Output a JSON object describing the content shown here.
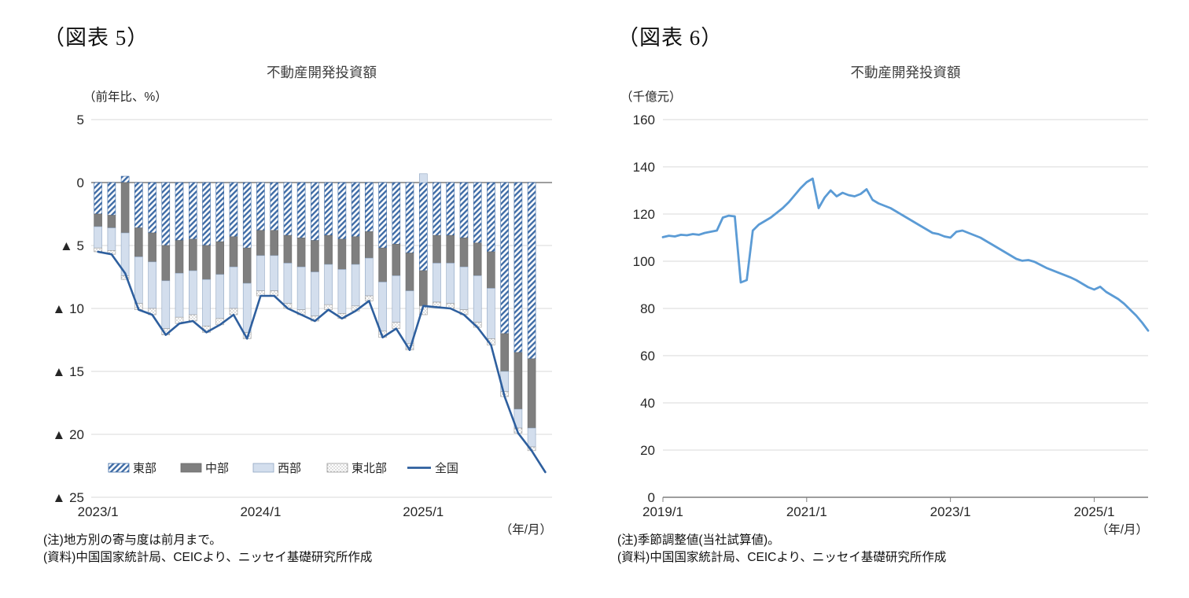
{
  "fig5": {
    "label": "（図表 5）",
    "note": "(注)地方別の寄与度は前月まで。",
    "source": "(資料)中国国家統計局、CEICより、ニッセイ基礎研究所作成"
  },
  "fig6": {
    "label": "（図表 6）",
    "note": "(注)季節調整値(当社試算値)。",
    "source": "(資料)中国国家統計局、CEICより、ニッセイ基礎研究所作成"
  },
  "chart_data": [
    {
      "type": "bar",
      "subtype": "stacked-bar-with-line",
      "title": "不動産開発投資額",
      "y_unit_label": "（前年比、%）",
      "x_unit_label": "（年/月）",
      "ylim": [
        -25,
        5
      ],
      "yticks": [
        5,
        0,
        -5,
        -10,
        -15,
        -20,
        -25
      ],
      "ytick_labels": [
        "5",
        "0",
        "▲ 5",
        "▲ 10",
        "▲ 15",
        "▲ 20",
        "▲ 25"
      ],
      "xtick_labels": [
        "2023/1",
        "2024/1",
        "2025/1"
      ],
      "xtick_positions": [
        0,
        12,
        24
      ],
      "grid": true,
      "legend_position": "bottom-inside",
      "x_months": [
        "2023/1",
        "2023/2",
        "2023/3",
        "2023/4",
        "2023/5",
        "2023/6",
        "2023/7",
        "2023/8",
        "2023/9",
        "2023/10",
        "2023/11",
        "2023/12",
        "2024/1",
        "2024/2",
        "2024/3",
        "2024/4",
        "2024/5",
        "2024/6",
        "2024/7",
        "2024/8",
        "2024/9",
        "2024/10",
        "2024/11",
        "2024/12",
        "2025/1",
        "2025/2",
        "2025/3",
        "2025/4",
        "2025/5",
        "2025/6",
        "2025/7",
        "2025/8",
        "2025/9",
        "2025/10"
      ],
      "bar_series": [
        {
          "name": "東部",
          "style": "hatch",
          "color": "#3f6ca6",
          "border": "#3f6ca6",
          "values": [
            -2.5,
            -2.6,
            0.5,
            -3.6,
            -4.0,
            -5.0,
            -4.6,
            -4.5,
            -5.0,
            -4.7,
            -4.3,
            -5.2,
            -3.8,
            -3.8,
            -4.2,
            -4.4,
            -4.6,
            -4.2,
            -4.5,
            -4.3,
            -3.9,
            -5.2,
            -4.9,
            -5.6,
            -7.0,
            -4.2,
            -4.2,
            -4.4,
            -4.8,
            -5.5,
            -12.0,
            -13.5,
            -14.0,
            null
          ]
        },
        {
          "name": "中部",
          "style": "solid",
          "color": "#7f7f7f",
          "border": "#6b6b6b",
          "values": [
            -1.0,
            -1.0,
            -4.0,
            -2.3,
            -2.3,
            -2.8,
            -2.6,
            -2.5,
            -2.7,
            -2.6,
            -2.4,
            -2.8,
            -2.0,
            -2.0,
            -2.2,
            -2.3,
            -2.5,
            -2.3,
            -2.4,
            -2.2,
            -2.1,
            -2.7,
            -2.5,
            -3.0,
            -2.8,
            -2.2,
            -2.2,
            -2.3,
            -2.6,
            -2.9,
            -3.0,
            -4.5,
            -5.5,
            null
          ]
        },
        {
          "name": "西部",
          "style": "solid",
          "color": "#d3deed",
          "border": "#8fa5c2",
          "values": [
            -1.7,
            -1.8,
            -3.4,
            -3.7,
            -3.7,
            -3.8,
            -3.5,
            -3.5,
            -3.7,
            -3.5,
            -3.3,
            -3.9,
            -2.8,
            -2.8,
            -3.2,
            -3.4,
            -3.5,
            -3.2,
            -3.5,
            -3.3,
            -3.0,
            -3.9,
            -3.7,
            -4.2,
            0.7,
            -3.1,
            -3.2,
            -3.4,
            -3.7,
            -4.0,
            -1.6,
            -1.5,
            -1.5,
            null
          ]
        },
        {
          "name": "東北部",
          "style": "dots",
          "color": "#ffffff",
          "border": "#9a9a9a",
          "values": [
            -0.3,
            -0.3,
            -0.3,
            -0.5,
            -0.5,
            -0.5,
            -0.5,
            -0.5,
            -0.5,
            -0.5,
            -0.5,
            -0.5,
            -0.4,
            -0.4,
            -0.4,
            -0.4,
            -0.4,
            -0.4,
            -0.4,
            -0.4,
            -0.4,
            -0.5,
            -0.5,
            -0.5,
            -0.7,
            -0.4,
            -0.4,
            -0.4,
            -0.4,
            -0.5,
            -0.4,
            -0.4,
            -0.3,
            null
          ]
        }
      ],
      "line_series": {
        "name": "全国",
        "color": "#2e5f9e",
        "values": [
          -5.5,
          -5.7,
          -7.2,
          -10.1,
          -10.5,
          -12.1,
          -11.2,
          -11.0,
          -11.9,
          -11.3,
          -10.5,
          -12.4,
          -9.0,
          -9.0,
          -10.0,
          -10.5,
          -11.0,
          -10.1,
          -10.8,
          -10.2,
          -9.4,
          -12.3,
          -11.6,
          -13.3,
          -9.8,
          -9.9,
          -10.0,
          -10.5,
          -11.5,
          -12.9,
          -17.0,
          -19.9,
          -21.3,
          -23.0
        ]
      }
    },
    {
      "type": "line",
      "title": "不動産開発投資額",
      "y_unit_label": "（千億元）",
      "x_unit_label": "（年/月）",
      "ylim": [
        0,
        160
      ],
      "yticks": [
        160,
        140,
        120,
        100,
        80,
        60,
        40,
        20,
        0
      ],
      "xtick_labels": [
        "2019/1",
        "2021/1",
        "2023/1",
        "2025/1"
      ],
      "xtick_positions": [
        0,
        24,
        48,
        72
      ],
      "x_start": "2019/1",
      "x_end": "2025/10",
      "frequency": "monthly",
      "grid": true,
      "series": [
        {
          "name": "不動産開発投資額(季節調整値)",
          "color": "#5b9bd5",
          "values": [
            110.2,
            110.8,
            110.5,
            111.2,
            111.0,
            111.5,
            111.2,
            112.0,
            112.5,
            113.0,
            118.5,
            119.3,
            119.0,
            91.0,
            92.0,
            113.0,
            115.5,
            117.0,
            118.5,
            120.5,
            122.5,
            125.0,
            128.0,
            131.0,
            133.5,
            135.0,
            122.5,
            127.0,
            130.0,
            127.5,
            129.0,
            128.0,
            127.5,
            128.5,
            130.5,
            126.0,
            124.5,
            123.5,
            122.5,
            121.0,
            119.5,
            118.0,
            116.5,
            115.0,
            113.5,
            112.0,
            111.5,
            110.5,
            110.0,
            112.5,
            113.0,
            112.0,
            111.0,
            110.0,
            108.5,
            107.0,
            105.5,
            104.0,
            102.5,
            101.0,
            100.2,
            100.5,
            99.8,
            98.5,
            97.2,
            96.2,
            95.2,
            94.2,
            93.2,
            92.0,
            90.5,
            89.0,
            88.0,
            89.2,
            87.0,
            85.5,
            84.0,
            82.0,
            79.5,
            77.0,
            74.0,
            70.6
          ]
        }
      ]
    }
  ]
}
